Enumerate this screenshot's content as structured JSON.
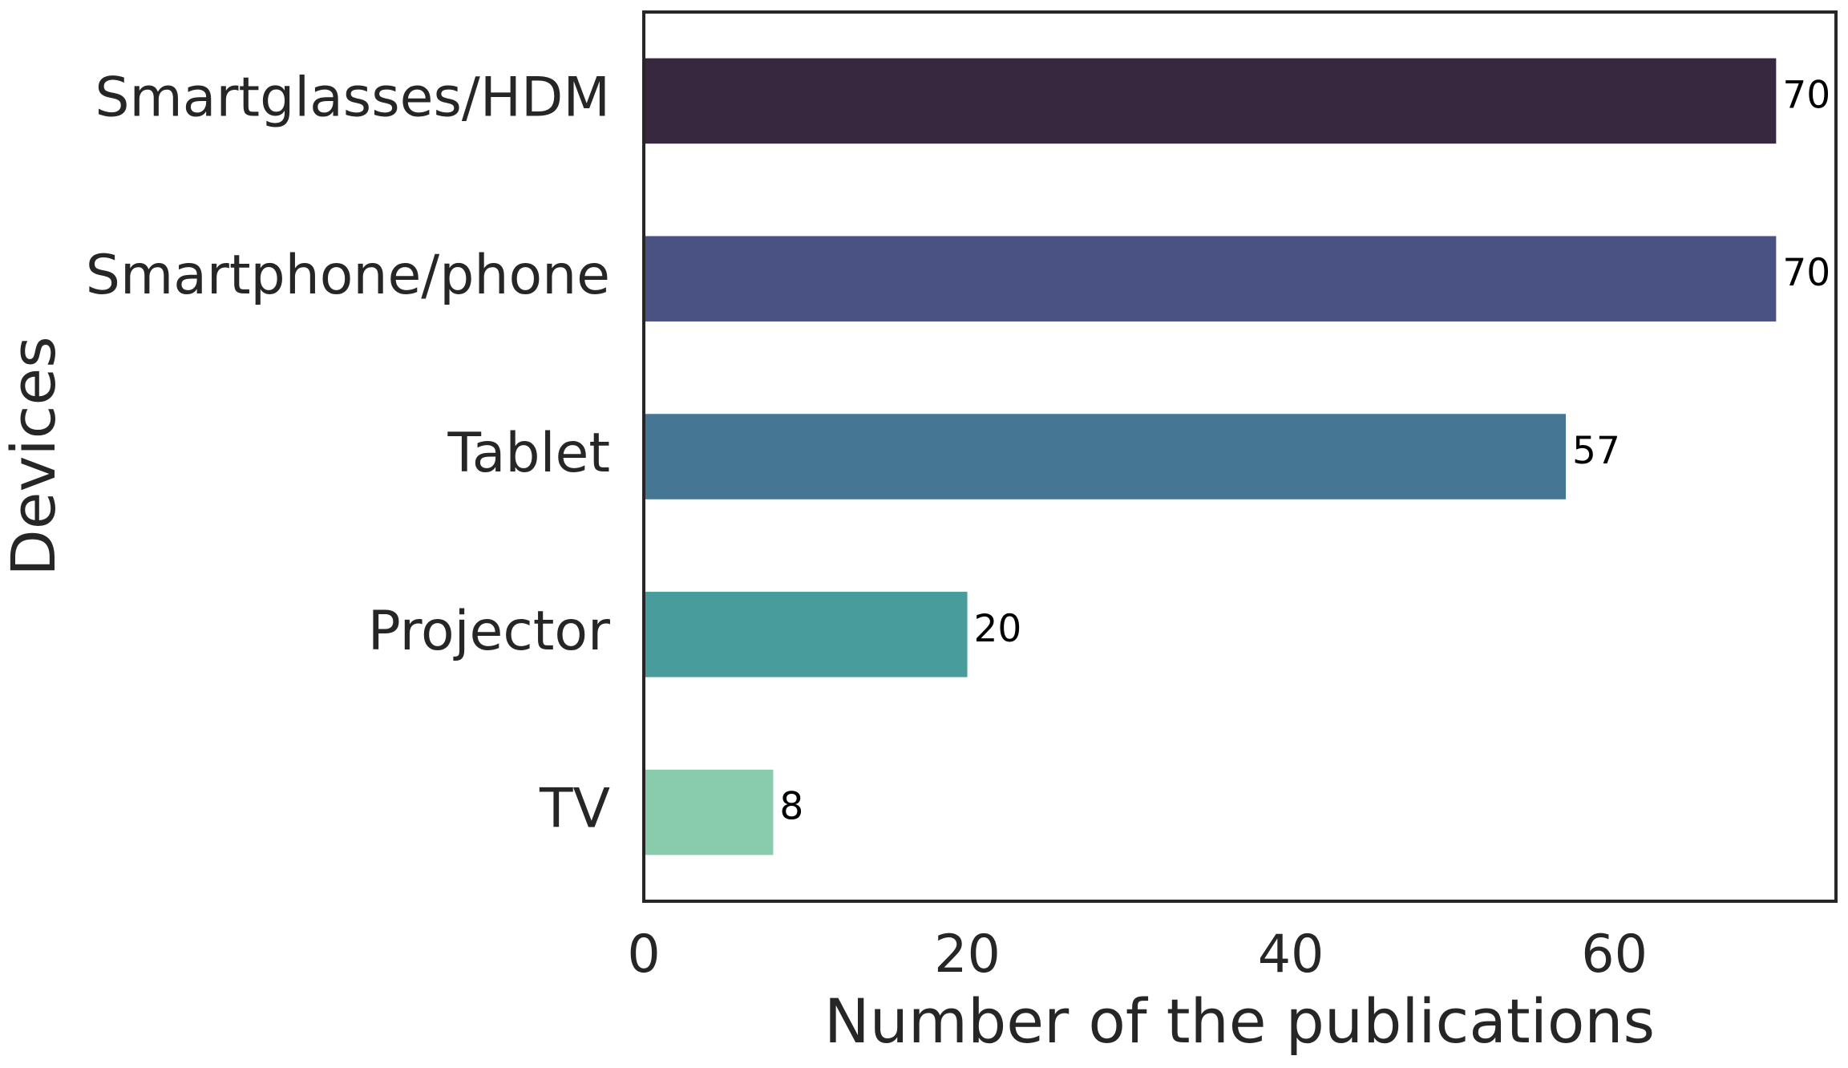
{
  "chart_data": {
    "type": "bar",
    "orientation": "horizontal",
    "x_label": "Number of the publications",
    "y_label": "Devices",
    "categories": [
      "Smartglasses/HDM",
      "Smartphone/phone",
      "Tablet",
      "Projector",
      "TV"
    ],
    "values": [
      70,
      70,
      57,
      20,
      8
    ],
    "colors": [
      "#37283f",
      "#4a5183",
      "#457694",
      "#489d9c",
      "#88cbad"
    ],
    "xlim": [
      0,
      73.7
    ],
    "xticks": [
      0,
      20,
      40,
      60
    ],
    "grid": false
  }
}
